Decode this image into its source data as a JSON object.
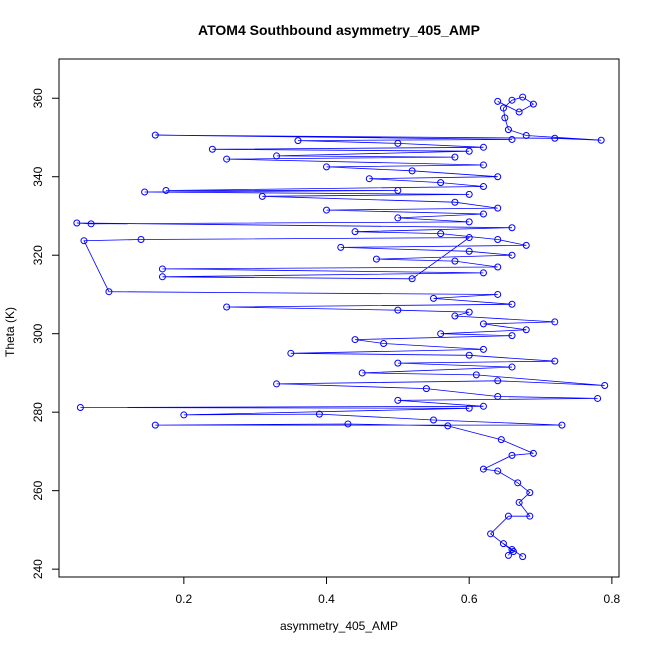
{
  "chart_data": {
    "type": "scatter",
    "title": "ATOM4 Southbound asymmetry_405_AMP",
    "xlabel": "asymmetry_405_AMP",
    "ylabel": "Theta (K)",
    "xlim": [
      0.025,
      0.81
    ],
    "ylim": [
      238,
      370
    ],
    "x_ticks": [
      0.2,
      0.4,
      0.6,
      0.8
    ],
    "x_tick_labels": [
      "0.2",
      "0.4",
      "0.6",
      "0.8"
    ],
    "y_ticks": [
      240,
      260,
      280,
      300,
      320,
      340,
      360
    ],
    "y_tick_labels": [
      "240",
      "260",
      "280",
      "300",
      "320",
      "340",
      "360"
    ],
    "grid": false,
    "legend": "none",
    "marker": "open-circle",
    "connected": true,
    "color": "#0000ff",
    "series": [
      {
        "values": [
          [
            0.655,
            243.5
          ],
          [
            0.66,
            245
          ],
          [
            0.675,
            243.2
          ],
          [
            0.648,
            246.5
          ],
          [
            0.662,
            244.5
          ],
          [
            0.63,
            249
          ],
          [
            0.655,
            253.5
          ],
          [
            0.685,
            253.5
          ],
          [
            0.67,
            257
          ],
          [
            0.685,
            259.5
          ],
          [
            0.668,
            262
          ],
          [
            0.64,
            265
          ],
          [
            0.62,
            265.5
          ],
          [
            0.66,
            269
          ],
          [
            0.69,
            269.5
          ],
          [
            0.645,
            273
          ],
          [
            0.57,
            276.5
          ],
          [
            0.43,
            277
          ],
          [
            0.16,
            276.7
          ],
          [
            0.73,
            276.7
          ],
          [
            0.55,
            278
          ],
          [
            0.39,
            279.5
          ],
          [
            0.2,
            279.3
          ],
          [
            0.6,
            281
          ],
          [
            0.055,
            281.2
          ],
          [
            0.62,
            281.5
          ],
          [
            0.5,
            283
          ],
          [
            0.78,
            283.5
          ],
          [
            0.64,
            284
          ],
          [
            0.54,
            286
          ],
          [
            0.33,
            287.2
          ],
          [
            0.64,
            288
          ],
          [
            0.79,
            286.8
          ],
          [
            0.61,
            289.5
          ],
          [
            0.45,
            290
          ],
          [
            0.66,
            291.5
          ],
          [
            0.5,
            292.5
          ],
          [
            0.72,
            293
          ],
          [
            0.6,
            294.5
          ],
          [
            0.35,
            295
          ],
          [
            0.62,
            296
          ],
          [
            0.48,
            297.5
          ],
          [
            0.44,
            298.5
          ],
          [
            0.66,
            299.5
          ],
          [
            0.56,
            300
          ],
          [
            0.68,
            301
          ],
          [
            0.62,
            302.5
          ],
          [
            0.72,
            303
          ],
          [
            0.58,
            304.5
          ],
          [
            0.6,
            305.5
          ],
          [
            0.5,
            306
          ],
          [
            0.26,
            306.8
          ],
          [
            0.66,
            307.5
          ],
          [
            0.55,
            309
          ],
          [
            0.64,
            310
          ],
          [
            0.095,
            310.7
          ],
          [
            0.06,
            323.7
          ],
          [
            0.14,
            324
          ],
          [
            0.6,
            324.5
          ],
          [
            0.52,
            314
          ],
          [
            0.17,
            314.5
          ],
          [
            0.62,
            315.5
          ],
          [
            0.17,
            316.5
          ],
          [
            0.64,
            317
          ],
          [
            0.58,
            318.5
          ],
          [
            0.47,
            319
          ],
          [
            0.66,
            320
          ],
          [
            0.6,
            321
          ],
          [
            0.42,
            322
          ],
          [
            0.68,
            322.5
          ],
          [
            0.64,
            324
          ],
          [
            0.56,
            325.5
          ],
          [
            0.44,
            326
          ],
          [
            0.66,
            327
          ],
          [
            0.05,
            328.2
          ],
          [
            0.07,
            328
          ],
          [
            0.6,
            328.5
          ],
          [
            0.5,
            329.5
          ],
          [
            0.62,
            330.5
          ],
          [
            0.4,
            331.5
          ],
          [
            0.64,
            332
          ],
          [
            0.58,
            333.5
          ],
          [
            0.31,
            335
          ],
          [
            0.6,
            335.5
          ],
          [
            0.145,
            336.1
          ],
          [
            0.5,
            336.5
          ],
          [
            0.175,
            336.5
          ],
          [
            0.62,
            337.5
          ],
          [
            0.56,
            338.5
          ],
          [
            0.46,
            339.5
          ],
          [
            0.64,
            340
          ],
          [
            0.52,
            341.5
          ],
          [
            0.4,
            342.5
          ],
          [
            0.62,
            343
          ],
          [
            0.26,
            344.5
          ],
          [
            0.58,
            345
          ],
          [
            0.33,
            345.3
          ],
          [
            0.6,
            346.5
          ],
          [
            0.24,
            347
          ],
          [
            0.62,
            347.5
          ],
          [
            0.5,
            348.5
          ],
          [
            0.36,
            349.2
          ],
          [
            0.66,
            349.5
          ],
          [
            0.16,
            350.6
          ],
          [
            0.72,
            349.8
          ],
          [
            0.785,
            349.3
          ],
          [
            0.68,
            350.5
          ],
          [
            0.655,
            352
          ],
          [
            0.65,
            355
          ],
          [
            0.648,
            357.5
          ],
          [
            0.66,
            359.5
          ],
          [
            0.675,
            360.3
          ],
          [
            0.69,
            358.5
          ],
          [
            0.67,
            356.5
          ],
          [
            0.64,
            359.2
          ]
        ]
      }
    ]
  }
}
